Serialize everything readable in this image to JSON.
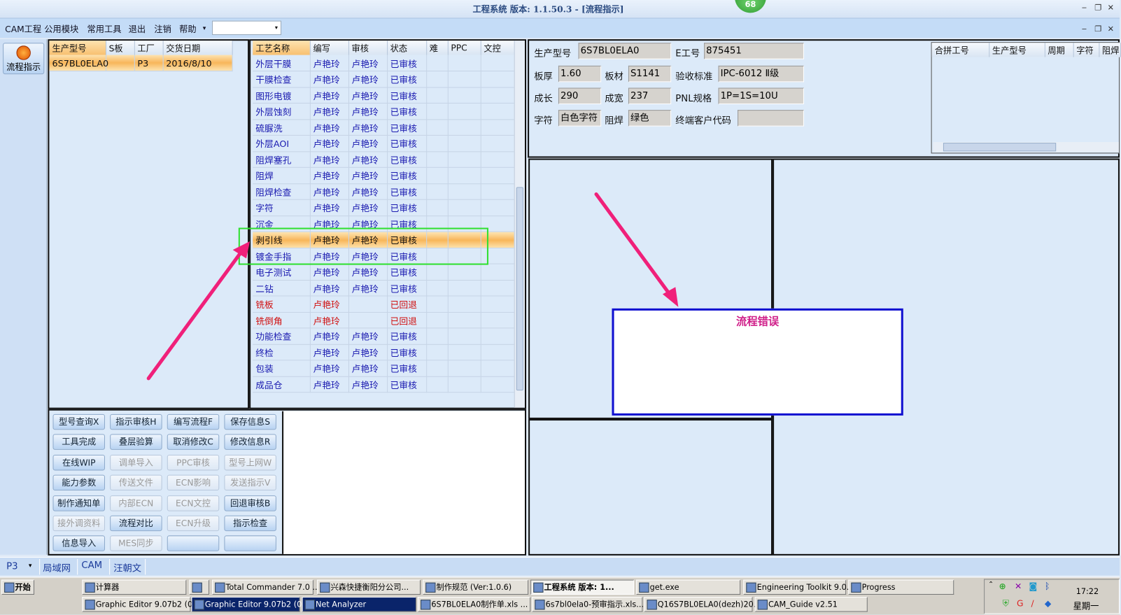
{
  "window": {
    "title": "工程系统  版本: 1.1.50.3 - [流程指示]",
    "badge": "68",
    "min": "‒",
    "max": "❐",
    "close": "✕"
  },
  "menu": [
    "CAM工程",
    "公用模块",
    "常用工具",
    "退出",
    "注销",
    "帮助"
  ],
  "menu_more": "▾",
  "combo_arrow": "▾",
  "side_button": {
    "label": "流程指示",
    "icon": "flow-indicator-icon"
  },
  "orders": {
    "columns": [
      "生产型号",
      "S板",
      "工厂",
      "交货日期"
    ],
    "rows": [
      [
        "6S7BL0ELA0",
        "",
        "P3",
        "2016/8/10"
      ]
    ]
  },
  "process": {
    "columns": [
      "工艺名称",
      "编写",
      "审核",
      "状态",
      "难",
      "PPC",
      "文控"
    ],
    "rows": [
      [
        "外层干膜",
        "卢艳玲",
        "卢艳玲",
        "已审核"
      ],
      [
        "干膜检查",
        "卢艳玲",
        "卢艳玲",
        "已审核"
      ],
      [
        "图形电镀",
        "卢艳玲",
        "卢艳玲",
        "已审核"
      ],
      [
        "外层蚀刻",
        "卢艳玲",
        "卢艳玲",
        "已审核"
      ],
      [
        "硫脲洗",
        "卢艳玲",
        "卢艳玲",
        "已审核"
      ],
      [
        "外层AOI",
        "卢艳玲",
        "卢艳玲",
        "已审核"
      ],
      [
        "阻焊塞孔",
        "卢艳玲",
        "卢艳玲",
        "已审核"
      ],
      [
        "阻焊",
        "卢艳玲",
        "卢艳玲",
        "已审核"
      ],
      [
        "阻焊检查",
        "卢艳玲",
        "卢艳玲",
        "已审核"
      ],
      [
        "字符",
        "卢艳玲",
        "卢艳玲",
        "已审核"
      ],
      [
        "沉金",
        "卢艳玲",
        "卢艳玲",
        "已审核"
      ],
      [
        "剥引线",
        "卢艳玲",
        "卢艳玲",
        "已审核"
      ],
      [
        "镀金手指",
        "卢艳玲",
        "卢艳玲",
        "已审核"
      ],
      [
        "电子测试",
        "卢艳玲",
        "卢艳玲",
        "已审核"
      ],
      [
        "二钻",
        "卢艳玲",
        "卢艳玲",
        "已审核"
      ],
      [
        "铣板",
        "卢艳玲",
        "",
        "已回退"
      ],
      [
        "铣倒角",
        "卢艳玲",
        "",
        "已回退"
      ],
      [
        "功能检查",
        "卢艳玲",
        "卢艳玲",
        "已审核"
      ],
      [
        "终检",
        "卢艳玲",
        "卢艳玲",
        "已审核"
      ],
      [
        "包装",
        "卢艳玲",
        "卢艳玲",
        "已审核"
      ],
      [
        "成品仓",
        "卢艳玲",
        "卢艳玲",
        "已审核"
      ]
    ],
    "selected_index": 11,
    "returned_color": "#d01010",
    "normal_color": "#1a1ab0"
  },
  "buttons": [
    {
      "label": "型号查询X",
      "enabled": true
    },
    {
      "label": "指示审核H",
      "enabled": true
    },
    {
      "label": "编写流程F",
      "enabled": true
    },
    {
      "label": "保存信息S",
      "enabled": true
    },
    {
      "label": "工具完成",
      "enabled": true
    },
    {
      "label": "叠层验算",
      "enabled": true
    },
    {
      "label": "取消修改C",
      "enabled": true
    },
    {
      "label": "修改信息R",
      "enabled": true
    },
    {
      "label": "在线WIP",
      "enabled": true
    },
    {
      "label": "调单导入",
      "enabled": false
    },
    {
      "label": "PPC审核",
      "enabled": false
    },
    {
      "label": "型号上网W",
      "enabled": false
    },
    {
      "label": "能力参数",
      "enabled": true
    },
    {
      "label": "传送文件",
      "enabled": false
    },
    {
      "label": "ECN影响",
      "enabled": false
    },
    {
      "label": "发送指示V",
      "enabled": false
    },
    {
      "label": "制作通知单",
      "enabled": true
    },
    {
      "label": "内部ECN",
      "enabled": false
    },
    {
      "label": "ECN文控",
      "enabled": false
    },
    {
      "label": "回退审核B",
      "enabled": true
    },
    {
      "label": "接外调资料",
      "enabled": false
    },
    {
      "label": "流程对比",
      "enabled": true
    },
    {
      "label": "ECN升级",
      "enabled": false
    },
    {
      "label": "指示检查",
      "enabled": true
    },
    {
      "label": "信息导入",
      "enabled": true
    },
    {
      "label": "MES同步",
      "enabled": false
    },
    {
      "label": "",
      "enabled": true
    },
    {
      "label": "",
      "enabled": true
    }
  ],
  "info": {
    "model_label": "生产型号",
    "model": "6S7BL0ELA0",
    "eno_label": "E工号",
    "eno": "875451",
    "thick_label": "板厚",
    "thick": "1.60",
    "mat_label": "板材",
    "mat": "S1141",
    "std_label": "验收标准",
    "std": "IPC-6012 Ⅱ级",
    "len_label": "成长",
    "len": "290",
    "wid_label": "成宽",
    "wid": "237",
    "pnl_label": "PNL规格",
    "pnl": "1P=1S=10U",
    "char_label": "字符",
    "char": "白色字符",
    "mask_label": "阻焊",
    "mask": "绿色",
    "cust_label": "终端客户代码",
    "cust": ""
  },
  "merge": {
    "columns": [
      "合拼工号",
      "生产型号",
      "周期",
      "字符",
      "阻焊"
    ]
  },
  "error_dialog": {
    "title": "流程错误",
    "title_color": "#d0208a",
    "border_color": "#1010d0"
  },
  "annotations": {
    "arrow_color": "#f0207a",
    "highlight_color": "#30e030"
  },
  "status": {
    "site": "P3",
    "site_arrow": "▾",
    "items": [
      "局域网",
      "CAM",
      "汪朝文"
    ]
  },
  "taskbar": {
    "start": "开始",
    "row1": [
      "计算器",
      "",
      "Total Commander 7.0 ...",
      "兴森快捷衡阳分公司...",
      "制作规范 (Ver:1.0.6)",
      "工程系统  版本: 1...",
      "get.exe",
      "Engineering Toolkit 9.0...",
      "Progress"
    ],
    "row2": [
      "Graphic Editor 9.07b2 (0...",
      "Graphic Editor 9.07b2 (0...",
      "Net Analyzer",
      "6S7BL0ELA0制作单.xls ...",
      "6s7bl0ela0-预审指示.xls...",
      "Q16S7BL0ELA0(dezh)20...",
      "CAM_Guide v2.51"
    ],
    "active_row1_index": 5,
    "active_row2_index": 2,
    "clock": "17:22",
    "day": "星期一"
  }
}
